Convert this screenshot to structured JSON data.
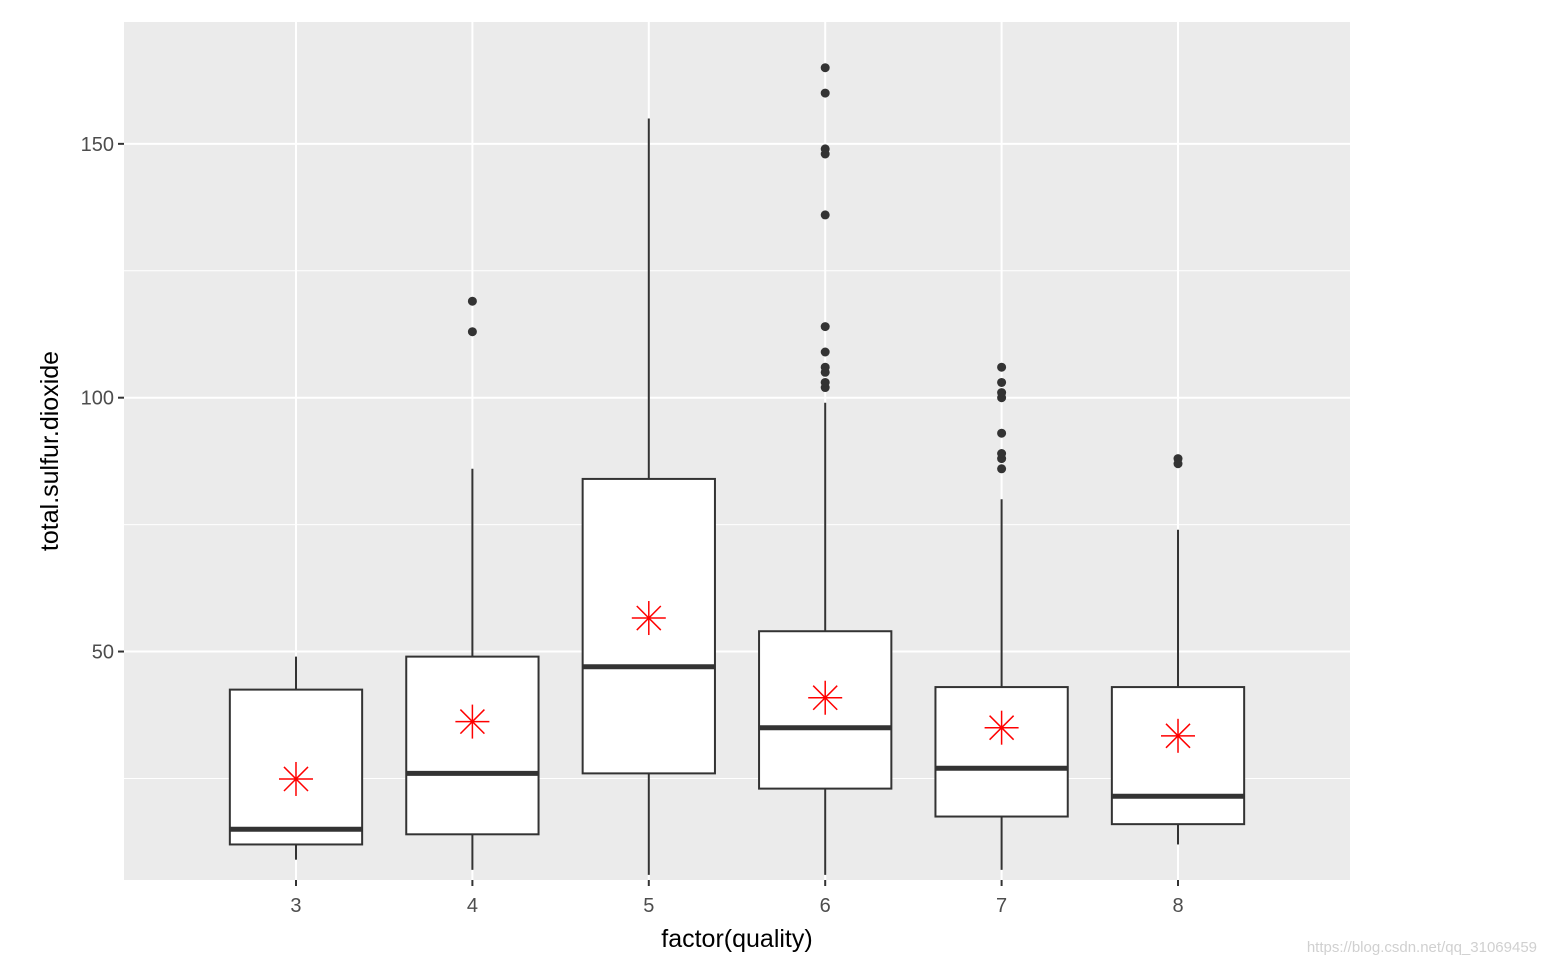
{
  "chart_data": {
    "type": "boxplot",
    "title": "",
    "xlabel": "factor(quality)",
    "ylabel": "total.sulfur.dioxide",
    "categories": [
      "3",
      "4",
      "5",
      "6",
      "7",
      "8"
    ],
    "ylim": [
      5,
      174
    ],
    "yticks": [
      50,
      100,
      150
    ],
    "grid": true,
    "boxes": [
      {
        "category": "3",
        "whisker_low": 9,
        "q1": 12,
        "median": 15,
        "q3": 42.5,
        "whisker_high": 49,
        "mean": 24.9,
        "outliers": []
      },
      {
        "category": "4",
        "whisker_low": 7,
        "q1": 14,
        "median": 26,
        "q3": 49,
        "whisker_high": 86,
        "mean": 36.2,
        "outliers": [
          113,
          119
        ]
      },
      {
        "category": "5",
        "whisker_low": 6,
        "q1": 26,
        "median": 47,
        "q3": 84,
        "whisker_high": 155,
        "mean": 56.6,
        "outliers": []
      },
      {
        "category": "6",
        "whisker_low": 6,
        "q1": 23,
        "median": 35,
        "q3": 54,
        "whisker_high": 99,
        "mean": 40.9,
        "outliers": [
          102,
          103,
          105,
          106,
          109,
          114,
          136,
          148,
          149,
          160,
          165
        ]
      },
      {
        "category": "7",
        "whisker_low": 7,
        "q1": 17.5,
        "median": 27,
        "q3": 43,
        "whisker_high": 80,
        "mean": 35.0,
        "outliers": [
          86,
          88,
          89,
          93,
          100,
          101,
          103,
          106
        ]
      },
      {
        "category": "8",
        "whisker_low": 12,
        "q1": 16,
        "median": 21.5,
        "q3": 43,
        "whisker_high": 74,
        "mean": 33.4,
        "outliers": [
          87,
          88
        ]
      }
    ],
    "colors": {
      "panel": "#ebebeb",
      "grid": "#ffffff",
      "box_line": "#333333",
      "box_fill": "#ffffff",
      "outlier": "#333333",
      "mean": "#ff0000"
    }
  },
  "watermark": "https://blog.csdn.net/qq_31069459"
}
